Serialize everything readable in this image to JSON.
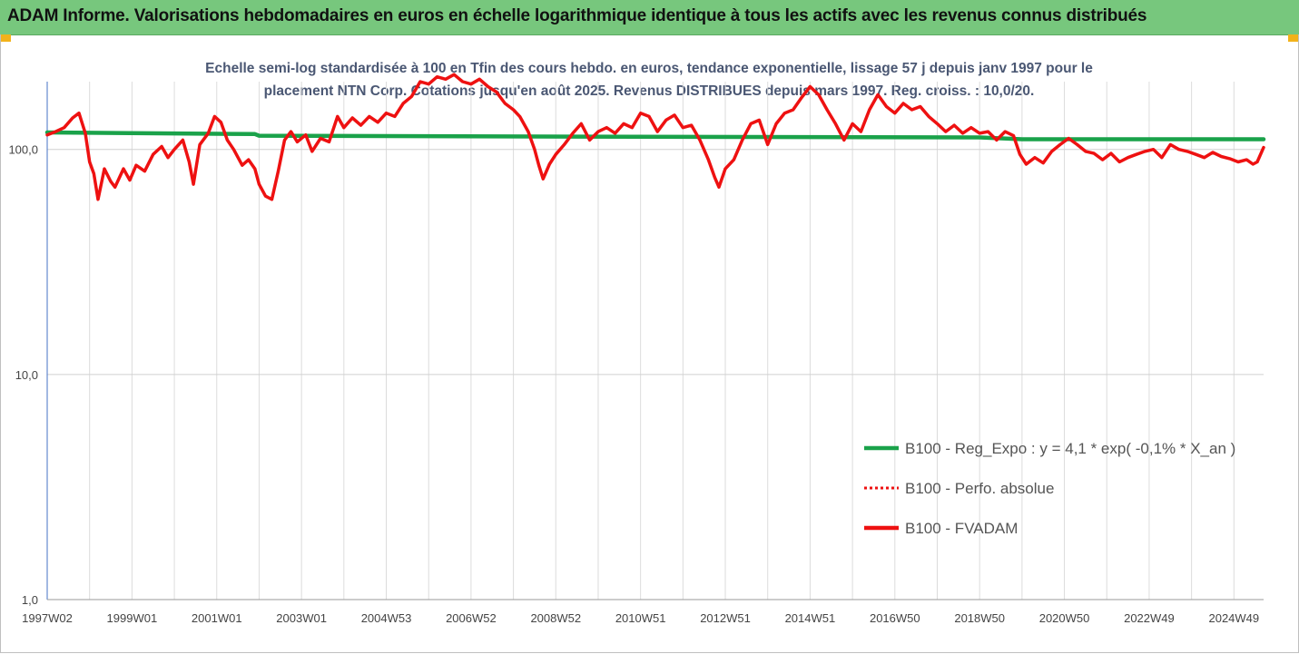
{
  "banner": {
    "title": "ADAM Informe. Valorisations hebdomadaires en euros en échelle logarithmique identique à tous les actifs avec les revenus connus distribués"
  },
  "colors": {
    "banner_bg": "#77c77d",
    "accent_corner": "#f2b21b",
    "subtitle_text": "#4a5773",
    "trend_line": "#1aa24a",
    "fvadam_line": "#ee1111"
  },
  "chart_data": {
    "type": "line",
    "subtitle_line1": "Echelle semi-log standardisée à 100 en Tfin des cours hebdo. en euros, tendance exponentielle, lissage 57 j depuis janv 1997 pour le",
    "subtitle_line2": "placement NTN Corp. Cotations jusqu'en août 2025. Revenus DISTRIBUES depuis mars 1997. Reg. croiss. : 10,0/20.",
    "y_scale": "log",
    "ylim": [
      1,
      200
    ],
    "y_ticks": [
      {
        "value": 1,
        "label": "1,0"
      },
      {
        "value": 10,
        "label": "10,0"
      },
      {
        "value": 100,
        "label": "100,0"
      }
    ],
    "x_range": [
      1997.0,
      2025.7
    ],
    "x_ticks": [
      {
        "x": 1997.0,
        "label": "1997W02"
      },
      {
        "x": 1999.0,
        "label": "1999W01"
      },
      {
        "x": 2001.0,
        "label": "2001W01"
      },
      {
        "x": 2003.0,
        "label": "2003W01"
      },
      {
        "x": 2005.0,
        "label": "2004W53"
      },
      {
        "x": 2007.0,
        "label": "2006W52"
      },
      {
        "x": 2009.0,
        "label": "2008W52"
      },
      {
        "x": 2011.0,
        "label": "2010W51"
      },
      {
        "x": 2013.0,
        "label": "2012W51"
      },
      {
        "x": 2015.0,
        "label": "2014W51"
      },
      {
        "x": 2017.0,
        "label": "2016W50"
      },
      {
        "x": 2019.0,
        "label": "2018W50"
      },
      {
        "x": 2021.0,
        "label": "2020W50"
      },
      {
        "x": 2023.0,
        "label": "2022W49"
      },
      {
        "x": 2025.0,
        "label": "2024W49"
      }
    ],
    "grid": "vertical",
    "legend_position": "bottom-right",
    "series": [
      {
        "name": "B100 - Reg_Expo : y = 4,1 * exp( -0,1% *  X_an )",
        "style": "solid-thick",
        "color": "#1aa24a",
        "points": [
          [
            1997.0,
            119
          ],
          [
            2001.9,
            117
          ],
          [
            2002.0,
            115
          ],
          [
            2009.5,
            114
          ],
          [
            2019.0,
            113
          ],
          [
            2020.0,
            111
          ],
          [
            2025.7,
            111
          ]
        ]
      },
      {
        "name": "B100 - Perfo. absolue",
        "style": "dotted",
        "color": "#ee1111",
        "points": []
      },
      {
        "name": "B100 - FVADAM",
        "style": "solid-thick",
        "color": "#ee1111",
        "points": [
          [
            1997.0,
            116
          ],
          [
            1997.2,
            120
          ],
          [
            1997.4,
            125
          ],
          [
            1997.6,
            138
          ],
          [
            1997.75,
            145
          ],
          [
            1997.9,
            118
          ],
          [
            1998.0,
            88
          ],
          [
            1998.1,
            78
          ],
          [
            1998.2,
            60
          ],
          [
            1998.35,
            82
          ],
          [
            1998.5,
            72
          ],
          [
            1998.6,
            68
          ],
          [
            1998.8,
            82
          ],
          [
            1998.95,
            73
          ],
          [
            1999.1,
            85
          ],
          [
            1999.3,
            80
          ],
          [
            1999.5,
            95
          ],
          [
            1999.7,
            103
          ],
          [
            1999.85,
            92
          ],
          [
            2000.0,
            100
          ],
          [
            2000.2,
            110
          ],
          [
            2000.35,
            88
          ],
          [
            2000.45,
            70
          ],
          [
            2000.6,
            105
          ],
          [
            2000.8,
            118
          ],
          [
            2000.95,
            140
          ],
          [
            2001.1,
            132
          ],
          [
            2001.25,
            110
          ],
          [
            2001.4,
            100
          ],
          [
            2001.6,
            85
          ],
          [
            2001.75,
            90
          ],
          [
            2001.9,
            82
          ],
          [
            2002.0,
            70
          ],
          [
            2002.15,
            62
          ],
          [
            2002.3,
            60
          ],
          [
            2002.45,
            80
          ],
          [
            2002.6,
            110
          ],
          [
            2002.75,
            120
          ],
          [
            2002.9,
            108
          ],
          [
            2003.1,
            116
          ],
          [
            2003.25,
            98
          ],
          [
            2003.45,
            112
          ],
          [
            2003.65,
            108
          ],
          [
            2003.85,
            140
          ],
          [
            2004.0,
            125
          ],
          [
            2004.2,
            138
          ],
          [
            2004.4,
            128
          ],
          [
            2004.6,
            140
          ],
          [
            2004.8,
            132
          ],
          [
            2005.0,
            145
          ],
          [
            2005.2,
            140
          ],
          [
            2005.4,
            160
          ],
          [
            2005.6,
            172
          ],
          [
            2005.8,
            200
          ],
          [
            2006.0,
            195
          ],
          [
            2006.2,
            210
          ],
          [
            2006.4,
            205
          ],
          [
            2006.6,
            215
          ],
          [
            2006.8,
            200
          ],
          [
            2007.0,
            195
          ],
          [
            2007.2,
            205
          ],
          [
            2007.4,
            190
          ],
          [
            2007.6,
            180
          ],
          [
            2007.8,
            160
          ],
          [
            2008.0,
            150
          ],
          [
            2008.15,
            140
          ],
          [
            2008.35,
            120
          ],
          [
            2008.5,
            100
          ],
          [
            2008.6,
            85
          ],
          [
            2008.7,
            74
          ],
          [
            2008.85,
            86
          ],
          [
            2009.0,
            95
          ],
          [
            2009.2,
            105
          ],
          [
            2009.4,
            118
          ],
          [
            2009.6,
            130
          ],
          [
            2009.8,
            110
          ],
          [
            2010.0,
            120
          ],
          [
            2010.2,
            125
          ],
          [
            2010.4,
            118
          ],
          [
            2010.6,
            130
          ],
          [
            2010.8,
            125
          ],
          [
            2011.0,
            145
          ],
          [
            2011.2,
            140
          ],
          [
            2011.4,
            120
          ],
          [
            2011.6,
            135
          ],
          [
            2011.8,
            142
          ],
          [
            2012.0,
            125
          ],
          [
            2012.2,
            128
          ],
          [
            2012.4,
            110
          ],
          [
            2012.6,
            90
          ],
          [
            2012.75,
            75
          ],
          [
            2012.85,
            68
          ],
          [
            2013.0,
            82
          ],
          [
            2013.2,
            90
          ],
          [
            2013.4,
            110
          ],
          [
            2013.6,
            130
          ],
          [
            2013.8,
            135
          ],
          [
            2014.0,
            105
          ],
          [
            2014.2,
            130
          ],
          [
            2014.4,
            145
          ],
          [
            2014.6,
            150
          ],
          [
            2014.8,
            170
          ],
          [
            2015.0,
            190
          ],
          [
            2015.2,
            175
          ],
          [
            2015.4,
            150
          ],
          [
            2015.6,
            130
          ],
          [
            2015.8,
            110
          ],
          [
            2016.0,
            130
          ],
          [
            2016.2,
            120
          ],
          [
            2016.4,
            150
          ],
          [
            2016.6,
            175
          ],
          [
            2016.8,
            155
          ],
          [
            2017.0,
            145
          ],
          [
            2017.2,
            160
          ],
          [
            2017.4,
            150
          ],
          [
            2017.6,
            155
          ],
          [
            2017.8,
            140
          ],
          [
            2018.0,
            130
          ],
          [
            2018.2,
            120
          ],
          [
            2018.4,
            128
          ],
          [
            2018.6,
            118
          ],
          [
            2018.8,
            125
          ],
          [
            2019.0,
            118
          ],
          [
            2019.2,
            120
          ],
          [
            2019.4,
            110
          ],
          [
            2019.6,
            120
          ],
          [
            2019.8,
            115
          ],
          [
            2019.95,
            95
          ],
          [
            2020.1,
            86
          ],
          [
            2020.3,
            92
          ],
          [
            2020.5,
            87
          ],
          [
            2020.7,
            98
          ],
          [
            2020.9,
            105
          ],
          [
            2021.1,
            112
          ],
          [
            2021.3,
            105
          ],
          [
            2021.5,
            98
          ],
          [
            2021.7,
            96
          ],
          [
            2021.9,
            90
          ],
          [
            2022.1,
            96
          ],
          [
            2022.3,
            88
          ],
          [
            2022.5,
            92
          ],
          [
            2022.7,
            95
          ],
          [
            2022.9,
            98
          ],
          [
            2023.1,
            100
          ],
          [
            2023.3,
            92
          ],
          [
            2023.5,
            105
          ],
          [
            2023.7,
            100
          ],
          [
            2023.9,
            98
          ],
          [
            2024.1,
            95
          ],
          [
            2024.3,
            92
          ],
          [
            2024.5,
            97
          ],
          [
            2024.7,
            93
          ],
          [
            2024.9,
            91
          ],
          [
            2025.1,
            88
          ],
          [
            2025.3,
            90
          ],
          [
            2025.45,
            86
          ],
          [
            2025.55,
            88
          ],
          [
            2025.7,
            102
          ]
        ]
      }
    ]
  }
}
